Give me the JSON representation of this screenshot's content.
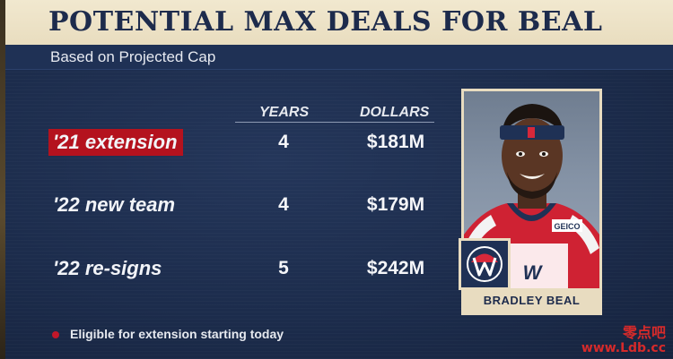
{
  "header": {
    "title": "POTENTIAL MAX DEALS FOR BEAL",
    "subtitle": "Based on Projected Cap"
  },
  "table": {
    "columns": [
      "YEARS",
      "DOLLARS"
    ],
    "rows": [
      {
        "label": "'21 extension",
        "years": "4",
        "dollars": "$181M",
        "highlighted": true
      },
      {
        "label": "'22 new team",
        "years": "4",
        "dollars": "$179M",
        "highlighted": false
      },
      {
        "label": "'22 re-signs",
        "years": "5",
        "dollars": "$242M",
        "highlighted": false
      }
    ]
  },
  "footnote": {
    "text": "Eligible for extension starting today",
    "marker_color": "#c0172a"
  },
  "player": {
    "name": "BRADLEY BEAL",
    "jersey_text": "GEICO",
    "team_logo": "wizards-logo"
  },
  "watermark": {
    "line1": "零点吧",
    "line2": "www.Ldb.cc"
  },
  "colors": {
    "background": "#1b2a47",
    "title_band": "#f1e8cf",
    "highlight": "#b4121e",
    "title_text": "#1d2b4c"
  }
}
